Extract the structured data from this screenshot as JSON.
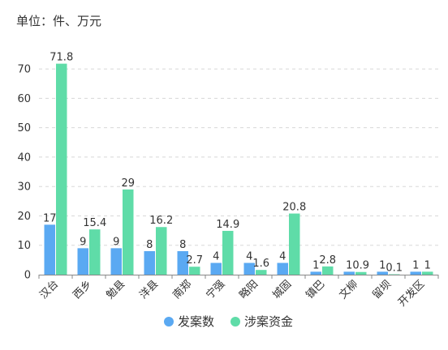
{
  "chart_data": {
    "type": "bar",
    "unit_label": "单位：件、万元",
    "categories": [
      "汉台",
      "西乡",
      "勉县",
      "洋县",
      "南郑",
      "宁强",
      "略阳",
      "城固",
      "镇巴",
      "文柳",
      "留坝",
      "开发区"
    ],
    "series": [
      {
        "name": "发案数",
        "color": "#5aa9f2",
        "values": [
          17,
          9,
          9,
          8,
          8,
          4,
          4,
          4,
          1,
          1,
          1,
          1
        ]
      },
      {
        "name": "涉案资金",
        "color": "#5fdca8",
        "values": [
          71.8,
          15.4,
          29,
          16.2,
          2.7,
          14.9,
          1.6,
          20.8,
          2.8,
          0.9,
          0.1,
          1
        ]
      }
    ],
    "yticks": [
      0,
      10,
      20,
      30,
      40,
      50,
      60,
      70
    ],
    "ylim": [
      0,
      75
    ],
    "grid": true,
    "legend_position": "bottom-center",
    "colors": {
      "axis": "#888888",
      "grid": "#d8d8d8",
      "text": "#333333"
    }
  }
}
